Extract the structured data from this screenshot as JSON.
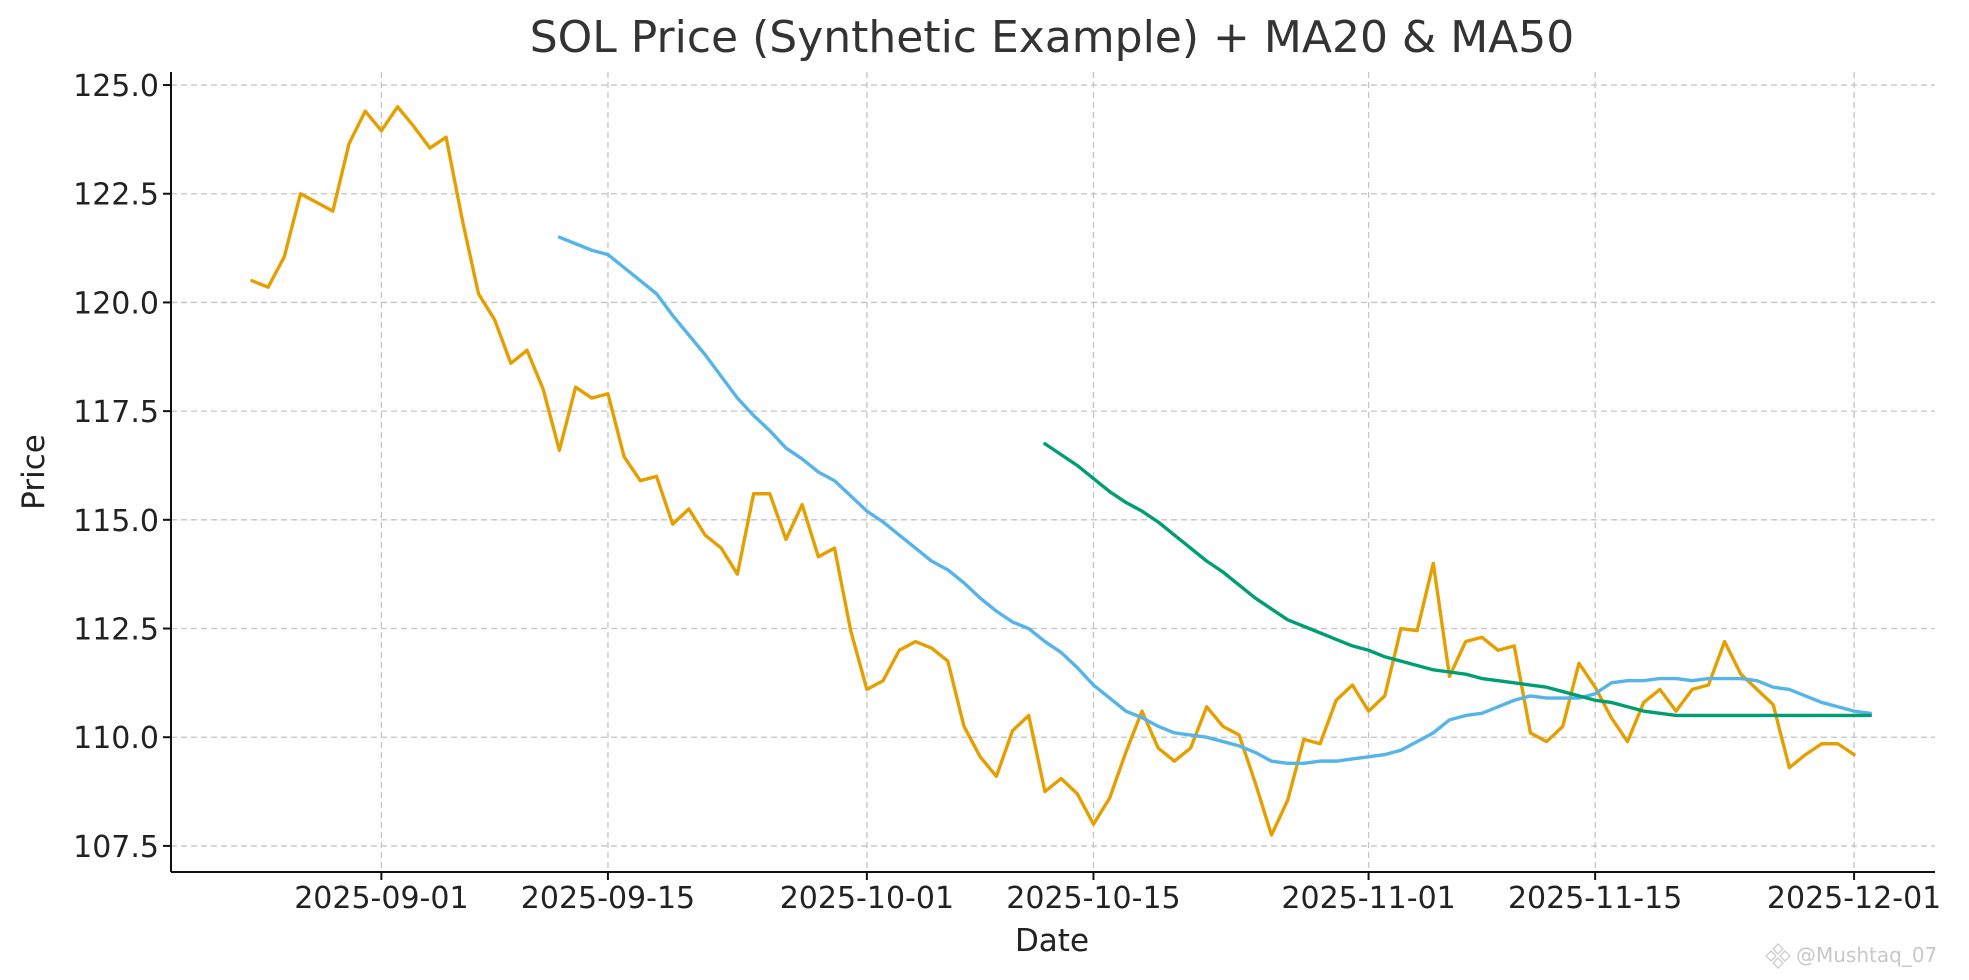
{
  "chart_data": {
    "type": "line",
    "title": "SOL Price (Synthetic Example) + MA20 & MA50",
    "xlabel": "Date",
    "ylabel": "Price",
    "x_start": "2025-08-24",
    "xlim": [
      "2025-08-19",
      "2025-12-06"
    ],
    "ylim": [
      106.9,
      125.3
    ],
    "x_ticks": [
      "2025-09-01",
      "2025-09-15",
      "2025-10-01",
      "2025-10-15",
      "2025-11-01",
      "2025-11-15",
      "2025-12-01"
    ],
    "y_ticks": [
      107.5,
      110.0,
      112.5,
      115.0,
      117.5,
      120.0,
      122.5,
      125.0
    ],
    "y_tick_labels": [
      "107.5",
      "110.0",
      "112.5",
      "115.0",
      "117.5",
      "120.0",
      "122.5",
      "125.0"
    ],
    "grid": true,
    "legend": "none",
    "series": [
      {
        "color": "#E69F00",
        "start": "2025-08-24",
        "values": [
          120.5,
          120.35,
          121.05,
          122.5,
          122.3,
          122.1,
          123.65,
          124.4,
          123.95,
          124.5,
          124.05,
          123.55,
          123.8,
          121.9,
          120.2,
          119.6,
          118.6,
          118.9,
          118.0,
          116.6,
          118.05,
          117.8,
          117.9,
          116.45,
          115.9,
          116.0,
          114.9,
          115.25,
          114.65,
          114.35,
          113.75,
          115.6,
          115.6,
          114.55,
          115.35,
          114.15,
          114.35,
          112.45,
          111.1,
          111.3,
          112.0,
          112.2,
          112.05,
          111.75,
          110.25,
          109.55,
          109.1,
          110.15,
          110.5,
          108.75,
          109.05,
          108.7,
          108.0,
          108.6,
          109.65,
          110.6,
          109.75,
          109.45,
          109.75,
          110.7,
          110.25,
          110.05,
          108.95,
          107.75,
          108.55,
          109.95,
          109.85,
          110.85,
          111.2,
          110.6,
          110.95,
          112.5,
          112.45,
          114.0,
          111.4,
          112.2,
          112.3,
          112.0,
          112.1,
          110.1,
          109.9,
          110.25,
          111.7,
          111.15,
          110.45,
          109.9,
          110.8,
          111.1,
          110.6,
          111.1,
          111.2,
          112.2,
          111.45,
          111.1,
          110.75,
          109.3,
          109.6,
          109.85,
          109.85,
          109.6
        ]
      },
      {
        "color": "#56B4E9",
        "start": "2025-09-12",
        "values": [
          121.5,
          121.35,
          121.2,
          121.1,
          120.8,
          120.5,
          120.2,
          119.7,
          119.25,
          118.8,
          118.3,
          117.8,
          117.4,
          117.05,
          116.65,
          116.4,
          116.1,
          115.9,
          115.55,
          115.2,
          114.95,
          114.65,
          114.35,
          114.05,
          113.85,
          113.55,
          113.2,
          112.9,
          112.65,
          112.5,
          112.2,
          111.95,
          111.6,
          111.2,
          110.9,
          110.6,
          110.45,
          110.25,
          110.1,
          110.05,
          110.0,
          109.9,
          109.8,
          109.65,
          109.45,
          109.4,
          109.4,
          109.45,
          109.45,
          109.5,
          109.55,
          109.6,
          109.7,
          109.9,
          110.1,
          110.4,
          110.5,
          110.55,
          110.7,
          110.85,
          110.95,
          110.9,
          110.9,
          110.9,
          111.0,
          111.25,
          111.3,
          111.3,
          111.35,
          111.35,
          111.3,
          111.35,
          111.35,
          111.35,
          111.3,
          111.15,
          111.1,
          110.95,
          110.8,
          110.7,
          110.6,
          110.55
        ]
      },
      {
        "color": "#009E73",
        "start": "2025-10-12",
        "values": [
          116.75,
          116.5,
          116.25,
          115.95,
          115.65,
          115.4,
          115.2,
          114.95,
          114.65,
          114.35,
          114.05,
          113.8,
          113.5,
          113.2,
          112.95,
          112.7,
          112.55,
          112.4,
          112.25,
          112.1,
          112.0,
          111.85,
          111.75,
          111.65,
          111.55,
          111.5,
          111.45,
          111.35,
          111.3,
          111.25,
          111.2,
          111.15,
          111.05,
          110.95,
          110.85,
          110.8,
          110.7,
          110.6,
          110.55,
          110.5,
          110.5,
          110.5,
          110.5,
          110.5,
          110.5,
          110.5,
          110.5,
          110.5,
          110.5,
          110.5,
          110.5,
          110.5
        ]
      }
    ]
  },
  "watermark": "@Mushtaq_07"
}
